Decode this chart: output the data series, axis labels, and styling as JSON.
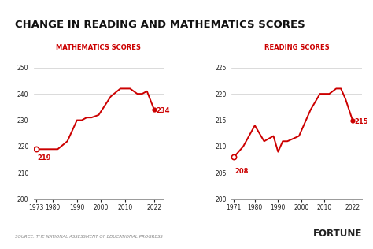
{
  "title": "CHANGE IN READING AND MATHEMATICS SCORES",
  "title_fontsize": 9.5,
  "background_color": "#ffffff",
  "line_color": "#cc0000",
  "math": {
    "label": "MATHEMATICS SCORES",
    "years": [
      1973,
      1978,
      1982,
      1986,
      1990,
      1992,
      1994,
      1996,
      1999,
      2004,
      2008,
      2012,
      2015,
      2017,
      2019,
      2022
    ],
    "scores": [
      219,
      219,
      219,
      222,
      230,
      230,
      231,
      231,
      232,
      239,
      242,
      242,
      240,
      240,
      241,
      234
    ],
    "ylim": [
      200,
      252
    ],
    "yticks": [
      200,
      210,
      220,
      230,
      240,
      250
    ],
    "xticks": [
      1973,
      1980,
      1990,
      2000,
      2010,
      2022
    ],
    "start_label": "219",
    "end_label": "234"
  },
  "reading": {
    "label": "READING SCORES",
    "years": [
      1971,
      1975,
      1980,
      1984,
      1988,
      1990,
      1992,
      1994,
      1999,
      2004,
      2008,
      2012,
      2015,
      2017,
      2019,
      2022
    ],
    "scores": [
      208,
      210,
      214,
      211,
      212,
      209,
      211,
      211,
      212,
      217,
      220,
      220,
      221,
      221,
      219,
      215
    ],
    "ylim": [
      200,
      226
    ],
    "yticks": [
      200,
      205,
      210,
      215,
      220,
      225
    ],
    "xticks": [
      1971,
      1980,
      1990,
      2000,
      2010,
      2022
    ],
    "start_label": "208",
    "end_label": "215"
  },
  "source_text": "SOURCE: THE NATIONAL ASSESSMENT OF EDUCATIONAL PROGRESS",
  "fortune_text": "FORTUNE"
}
